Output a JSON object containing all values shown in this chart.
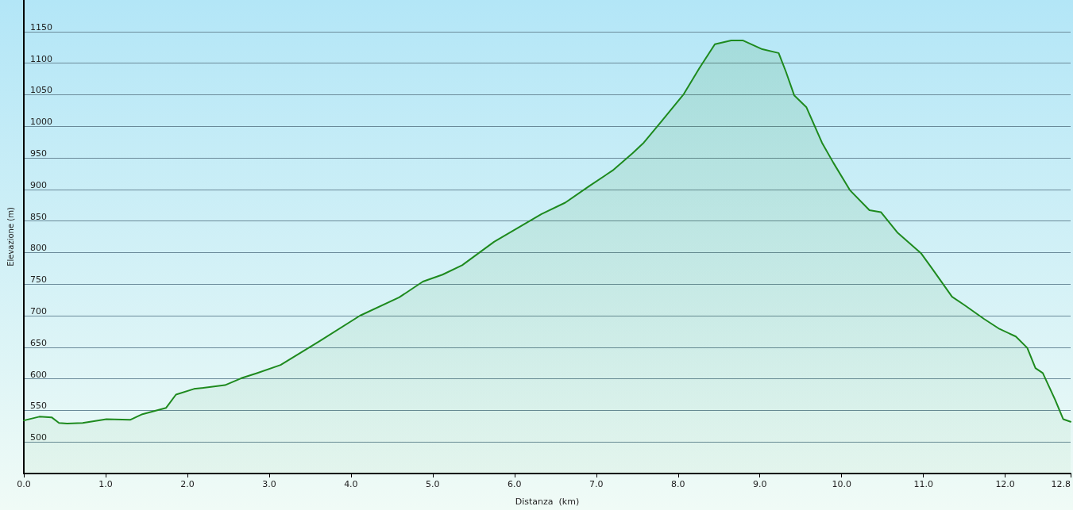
{
  "chart_data": {
    "type": "area",
    "xlabel": "Distanza  (km)",
    "ylabel": "Elevazione (m)",
    "x": [
      0,
      0.19,
      0.34,
      0.43,
      0.53,
      0.72,
      1.01,
      1.3,
      1.45,
      1.74,
      1.86,
      2.08,
      2.46,
      2.66,
      2.85,
      3.14,
      3.62,
      4.11,
      4.59,
      4.88,
      5.12,
      5.36,
      5.75,
      6.04,
      6.33,
      6.62,
      6.91,
      7.2,
      7.44,
      7.58,
      7.78,
      8.07,
      8.26,
      8.45,
      8.65,
      8.79,
      9.03,
      9.23,
      9.32,
      9.42,
      9.57,
      9.76,
      9.9,
      10.1,
      10.34,
      10.48,
      10.68,
      10.97,
      11.11,
      11.35,
      11.5,
      11.74,
      11.93,
      12.13,
      12.27,
      12.37,
      12.46,
      12.61,
      12.71,
      12.8
    ],
    "series": [
      {
        "color": "#1e8a1e",
        "values": [
          534,
          540,
          539,
          530,
          529,
          530,
          536,
          535,
          544,
          554,
          575,
          584,
          590,
          601,
          609,
          622,
          660,
          700,
          729,
          754,
          765,
          780,
          817,
          839,
          861,
          879,
          905,
          930,
          957,
          974,
          1005,
          1051,
          1092,
          1130,
          1136,
          1136,
          1122,
          1116,
          1086,
          1049,
          1030,
          974,
          942,
          899,
          867,
          864,
          832,
          799,
          774,
          730,
          717,
          695,
          679,
          667,
          649,
          617,
          609,
          567,
          536,
          532
        ]
      }
    ],
    "xlim": [
      0,
      12.8
    ],
    "xticks": [
      {
        "value": 0,
        "label": "0.0"
      },
      {
        "value": 1,
        "label": "1.0"
      },
      {
        "value": 2,
        "label": "2.0"
      },
      {
        "value": 3,
        "label": "3.0"
      },
      {
        "value": 4,
        "label": "4.0"
      },
      {
        "value": 5,
        "label": "5.0"
      },
      {
        "value": 6,
        "label": "6.0"
      },
      {
        "value": 7,
        "label": "7.0"
      },
      {
        "value": 8,
        "label": "8.0"
      },
      {
        "value": 9,
        "label": "9.0"
      },
      {
        "value": 10,
        "label": "10.0"
      },
      {
        "value": 11,
        "label": "11.0"
      },
      {
        "value": 12,
        "label": "12.0"
      },
      {
        "value": 12.8,
        "label": "12.8"
      }
    ],
    "ylim": [
      450,
      1200
    ],
    "yticks": [
      500,
      550,
      600,
      650,
      700,
      750,
      800,
      850,
      900,
      950,
      1000,
      1050,
      1100,
      1150
    ],
    "grid": "y",
    "marker": "none",
    "line_style": "solid"
  }
}
